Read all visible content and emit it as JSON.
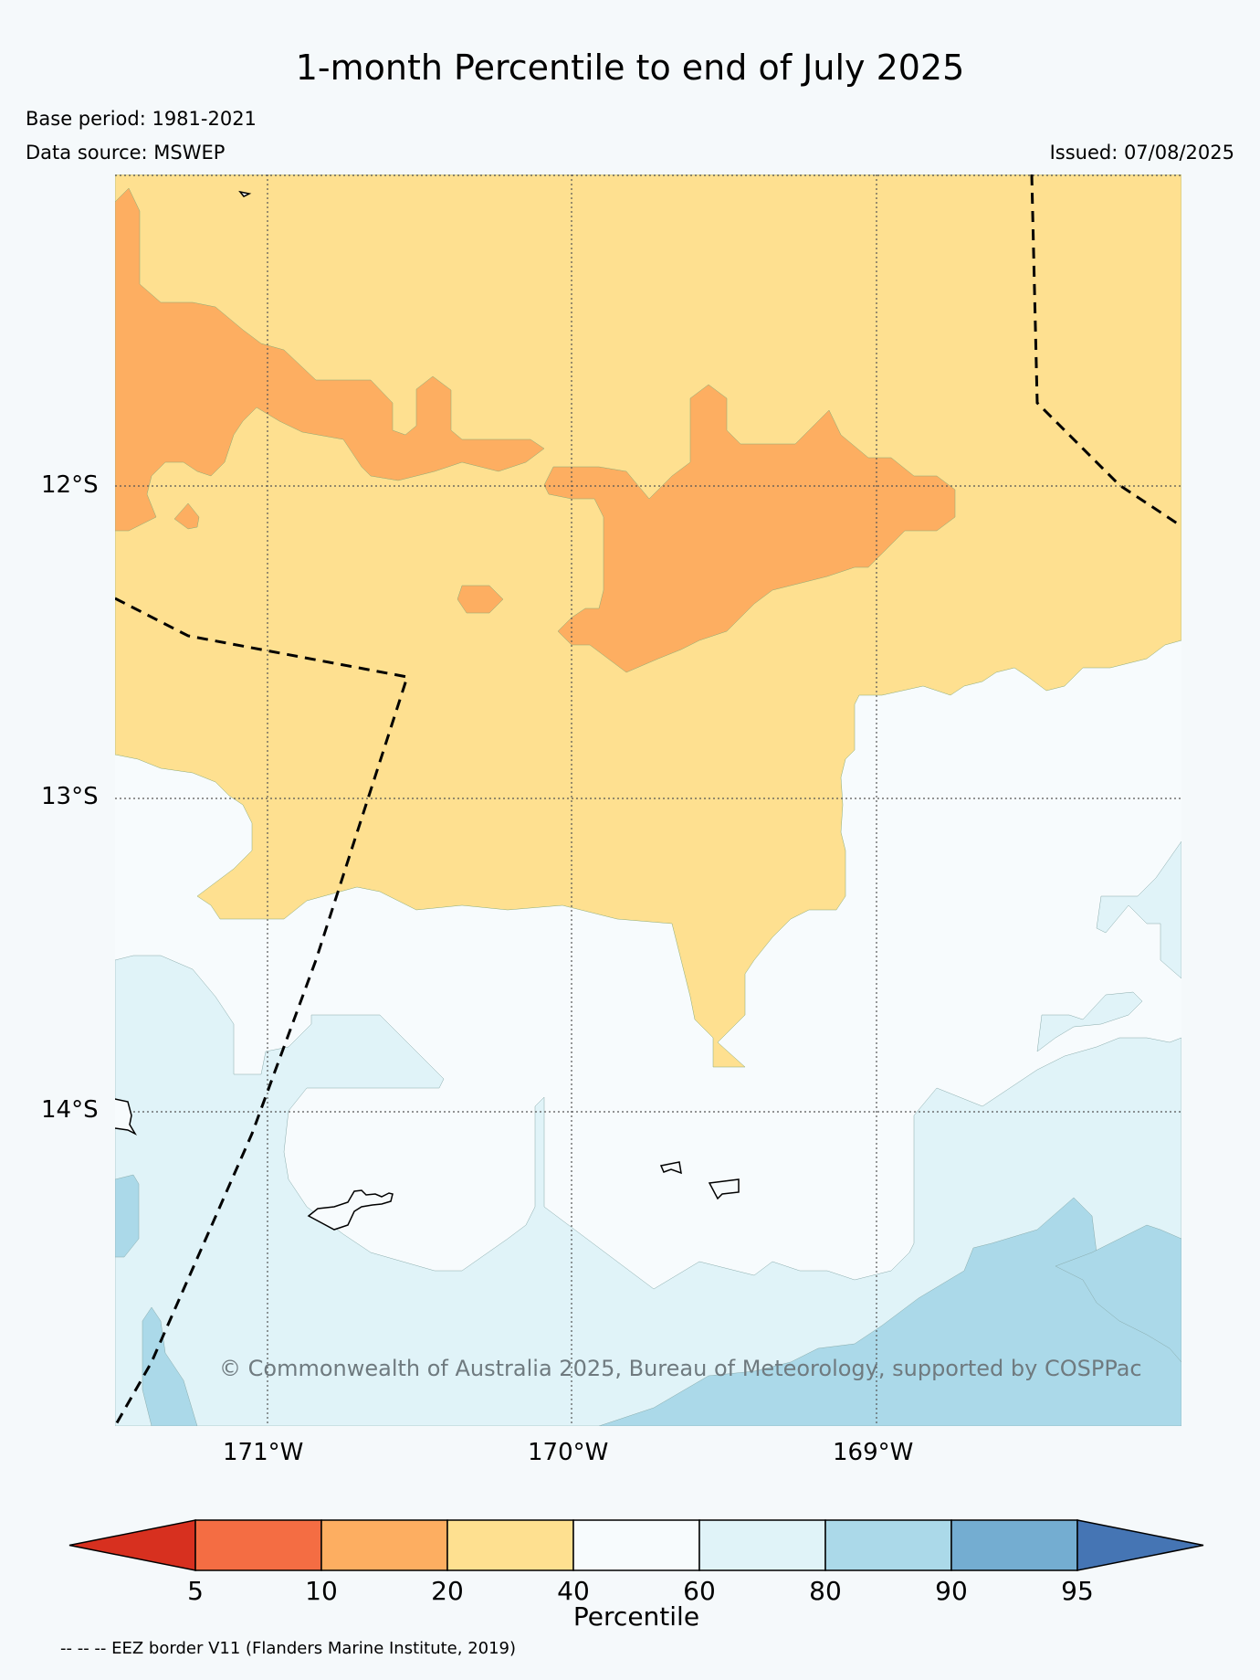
{
  "title": "1-month Percentile to end of July 2025",
  "base_period": "Base period: 1981-2021",
  "data_source": "Data source: MSWEP",
  "issued": "Issued: 07/08/2025",
  "map": {
    "lat_labels": [
      "12°S",
      "13°S",
      "14°S"
    ],
    "lon_labels": [
      "171°W",
      "170°W",
      "169°W"
    ],
    "copyright": "© Commonwealth of Australia 2025, Bureau of Meteorology, supported by COSPPac"
  },
  "legend": {
    "ticks": [
      "5",
      "10",
      "20",
      "40",
      "60",
      "80",
      "90",
      "95"
    ],
    "label": "Percentile",
    "bins": [
      {
        "range": "<5",
        "color": "#d7301f"
      },
      {
        "range": "5-10",
        "color": "#f46d43"
      },
      {
        "range": "10-20",
        "color": "#fdae61"
      },
      {
        "range": "20-40",
        "color": "#fee090"
      },
      {
        "range": "40-60",
        "color": "#f7fbfd"
      },
      {
        "range": "60-80",
        "color": "#e0f3f8"
      },
      {
        "range": "80-90",
        "color": "#abd9e9"
      },
      {
        "range": "90-95",
        "color": "#74add1"
      },
      {
        "range": ">95",
        "color": "#4575b4"
      }
    ]
  },
  "footnote": "-- -- -- EEZ border V11 (Flanders Marine Institute, 2019)"
}
